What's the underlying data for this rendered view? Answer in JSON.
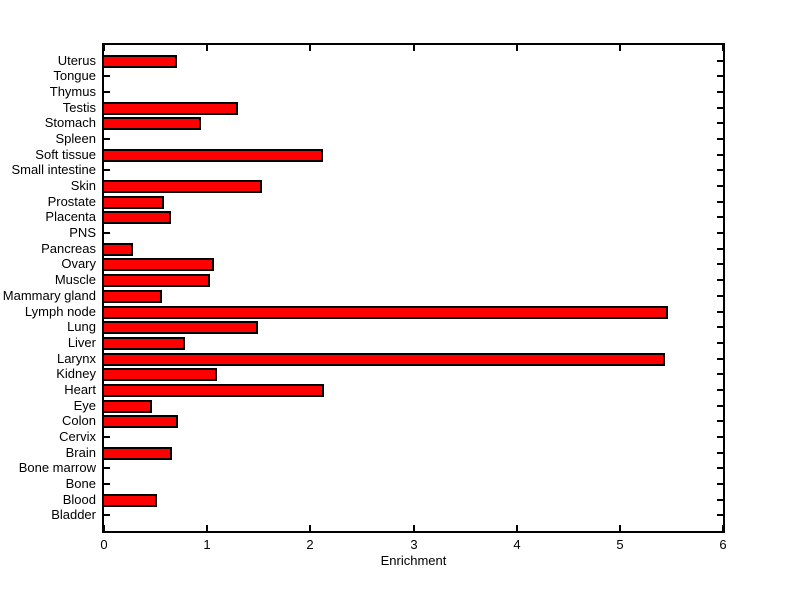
{
  "figure": {
    "background": "#ffffff",
    "axis_color": "#000000",
    "text_color": "#000000"
  },
  "chart_data": {
    "type": "bar",
    "orientation": "horizontal",
    "title": "",
    "xlabel": "Enrichment",
    "ylabel": "",
    "xlim": [
      0,
      6
    ],
    "xticks": [
      0,
      1,
      2,
      3,
      4,
      5,
      6
    ],
    "grid": false,
    "box": true,
    "bar_fill_color": "#ff0000",
    "bar_edge_color": "#000000",
    "categories_top_to_bottom": [
      "Uterus",
      "Tongue",
      "Thymus",
      "Testis",
      "Stomach",
      "Spleen",
      "Soft tissue",
      "Small intestine",
      "Skin",
      "Prostate",
      "Placenta",
      "PNS",
      "Pancreas",
      "Ovary",
      "Muscle",
      "Mammary gland",
      "Lymph node",
      "Lung",
      "Liver",
      "Larynx",
      "Kidney",
      "Heart",
      "Eye",
      "Colon",
      "Cervix",
      "Brain",
      "Bone marrow",
      "Bone",
      "Blood",
      "Bladder"
    ],
    "values": [
      0.69,
      0,
      0,
      1.28,
      0.92,
      0,
      2.1,
      0,
      1.51,
      0.56,
      0.63,
      0,
      0.26,
      1.05,
      1.01,
      0.54,
      5.45,
      1.47,
      0.77,
      5.42,
      1.08,
      2.11,
      0.45,
      0.7,
      0,
      0.64,
      0,
      0,
      0.49,
      0
    ]
  }
}
